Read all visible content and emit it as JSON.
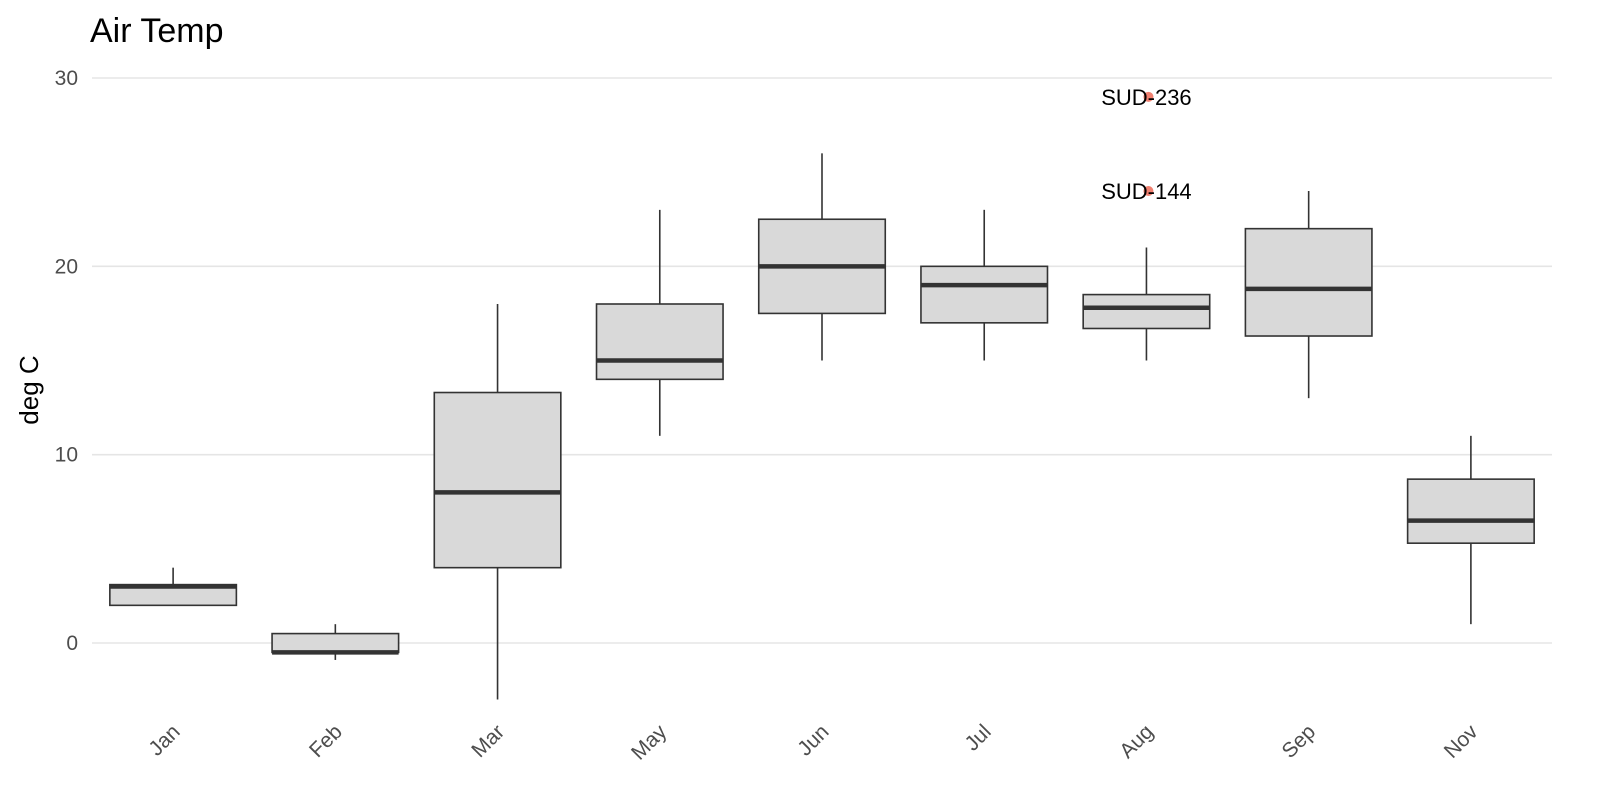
{
  "chart_data": {
    "type": "boxplot",
    "title": "Air Temp",
    "xlabel": "",
    "ylabel": "deg C",
    "ylim": [
      -4,
      30
    ],
    "yticks": [
      0,
      10,
      20,
      30
    ],
    "grid": true,
    "categories": [
      "Jan",
      "Feb",
      "Mar",
      "May",
      "Jun",
      "Jul",
      "Aug",
      "Sep",
      "Nov"
    ],
    "boxes": [
      {
        "category": "Jan",
        "whisker_low": 2,
        "q1": 2,
        "median": 3,
        "q3": 3.1,
        "whisker_high": 4
      },
      {
        "category": "Feb",
        "whisker_low": -0.9,
        "q1": -0.5,
        "median": -0.5,
        "q3": 0.5,
        "whisker_high": 1
      },
      {
        "category": "Mar",
        "whisker_low": -3,
        "q1": 4,
        "median": 8,
        "q3": 13.3,
        "whisker_high": 18
      },
      {
        "category": "May",
        "whisker_low": 11,
        "q1": 14,
        "median": 15,
        "q3": 18,
        "whisker_high": 23
      },
      {
        "category": "Jun",
        "whisker_low": 15,
        "q1": 17.5,
        "median": 20,
        "q3": 22.5,
        "whisker_high": 26
      },
      {
        "category": "Jul",
        "whisker_low": 15,
        "q1": 17,
        "median": 19,
        "q3": 20,
        "whisker_high": 23
      },
      {
        "category": "Aug",
        "whisker_low": 15,
        "q1": 16.7,
        "median": 17.8,
        "q3": 18.5,
        "whisker_high": 21
      },
      {
        "category": "Sep",
        "whisker_low": 13,
        "q1": 16.3,
        "median": 18.8,
        "q3": 22,
        "whisker_high": 24
      },
      {
        "category": "Nov",
        "whisker_low": 1,
        "q1": 5.3,
        "median": 6.5,
        "q3": 8.7,
        "whisker_high": 11
      }
    ],
    "outliers": [
      {
        "category": "Aug",
        "value": 29,
        "label": "SUD-236"
      },
      {
        "category": "Aug",
        "value": 24,
        "label": "SUD-144"
      }
    ],
    "colors": {
      "box_fill": "#d9d9d9",
      "box_stroke": "#333333",
      "median": "#333333",
      "outlier": "#f08070",
      "grid": "#e5e5e5"
    }
  }
}
